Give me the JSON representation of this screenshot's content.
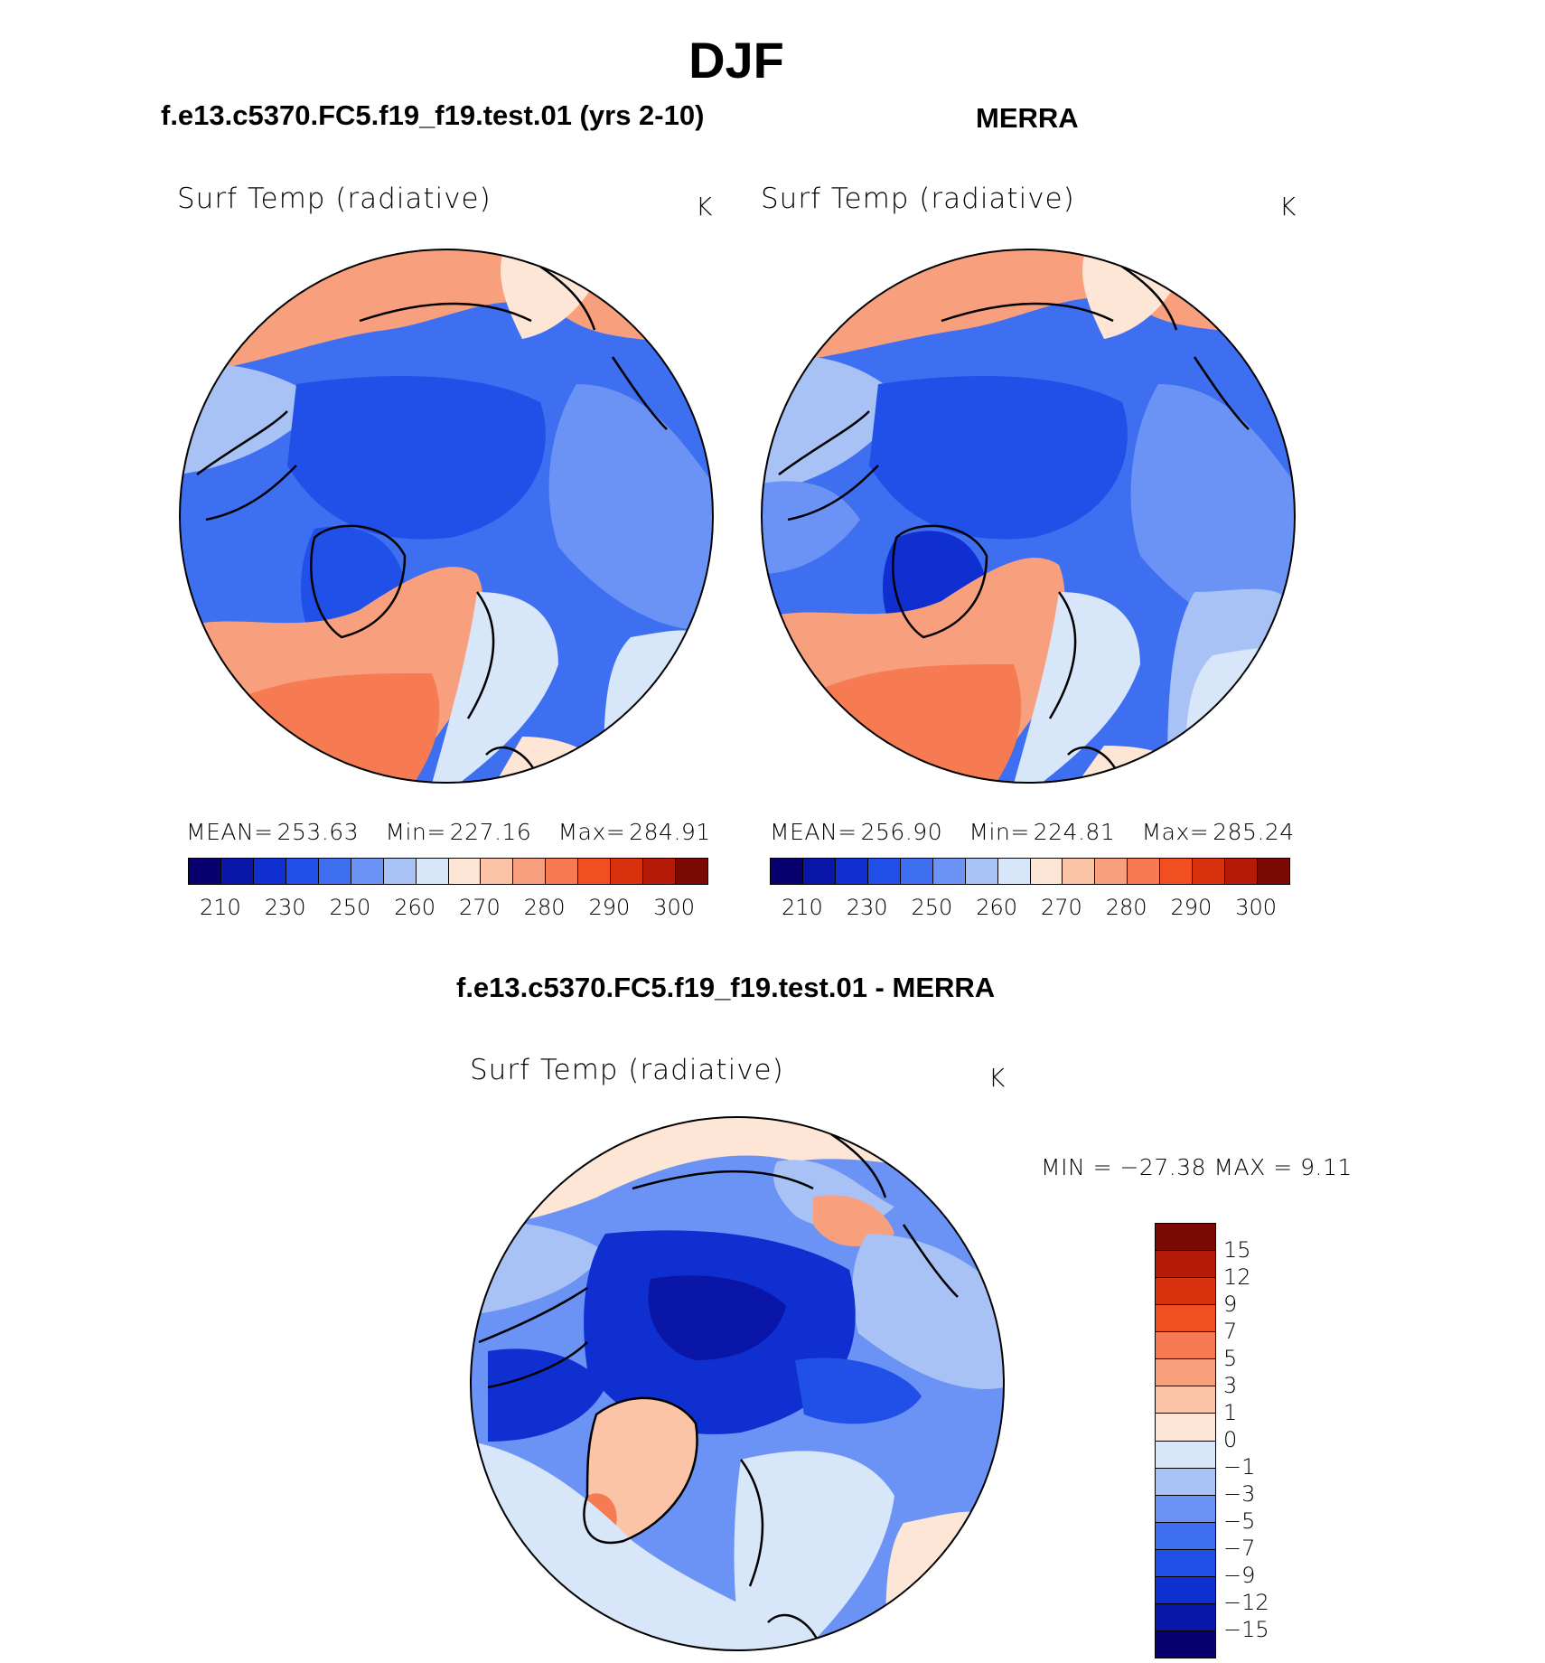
{
  "figure": {
    "season": "DJF",
    "variable": "Surf Temp (radiative)",
    "unit": "K"
  },
  "panels": [
    {
      "title": "f.e13.c5370.FC5.f19_f19.test.01 (yrs 2-10)",
      "stats": {
        "mean_label": "MEAN=",
        "mean": "253.63",
        "min_label": "Min=",
        "min": "227.16",
        "max_label": "Max=",
        "max": "284.91"
      }
    },
    {
      "title": "MERRA",
      "stats": {
        "mean_label": "MEAN=",
        "mean": "256.90",
        "min_label": "Min=",
        "min": "224.81",
        "max_label": "Max=",
        "max": "285.24"
      }
    },
    {
      "title": "f.e13.c5370.FC5.f19_f19.test.01 - MERRA",
      "stats": {
        "text": "MIN = −27.38 MAX =    9.11"
      }
    }
  ],
  "abs_colorbar": {
    "tick_labels": [
      "210",
      "230",
      "250",
      "260",
      "270",
      "280",
      "290",
      "300"
    ],
    "colors": [
      "#08006e",
      "#0a16a8",
      "#0f2fd1",
      "#2050e8",
      "#3d6ff0",
      "#6b93f5",
      "#a9c2f6",
      "#d7e6f8",
      "#fde6d6",
      "#fbc4a7",
      "#f8a07e",
      "#f67b52",
      "#f14f22",
      "#d7310e",
      "#b61b09",
      "#7b0a04"
    ]
  },
  "diff_colorbar": {
    "tick_labels": [
      "15",
      "12",
      "9",
      "7",
      "5",
      "3",
      "1",
      "0",
      "−1",
      "−3",
      "−5",
      "−7",
      "−9",
      "−12",
      "−15"
    ],
    "colors": [
      "#7b0a04",
      "#b61b09",
      "#d7310e",
      "#f14f22",
      "#f67b52",
      "#f8a07e",
      "#fbc4a7",
      "#fde6d6",
      "#d7e6f8",
      "#a9c2f6",
      "#6b93f5",
      "#3d6ff0",
      "#2050e8",
      "#0f2fd1",
      "#0a16a8",
      "#08006e"
    ]
  }
}
